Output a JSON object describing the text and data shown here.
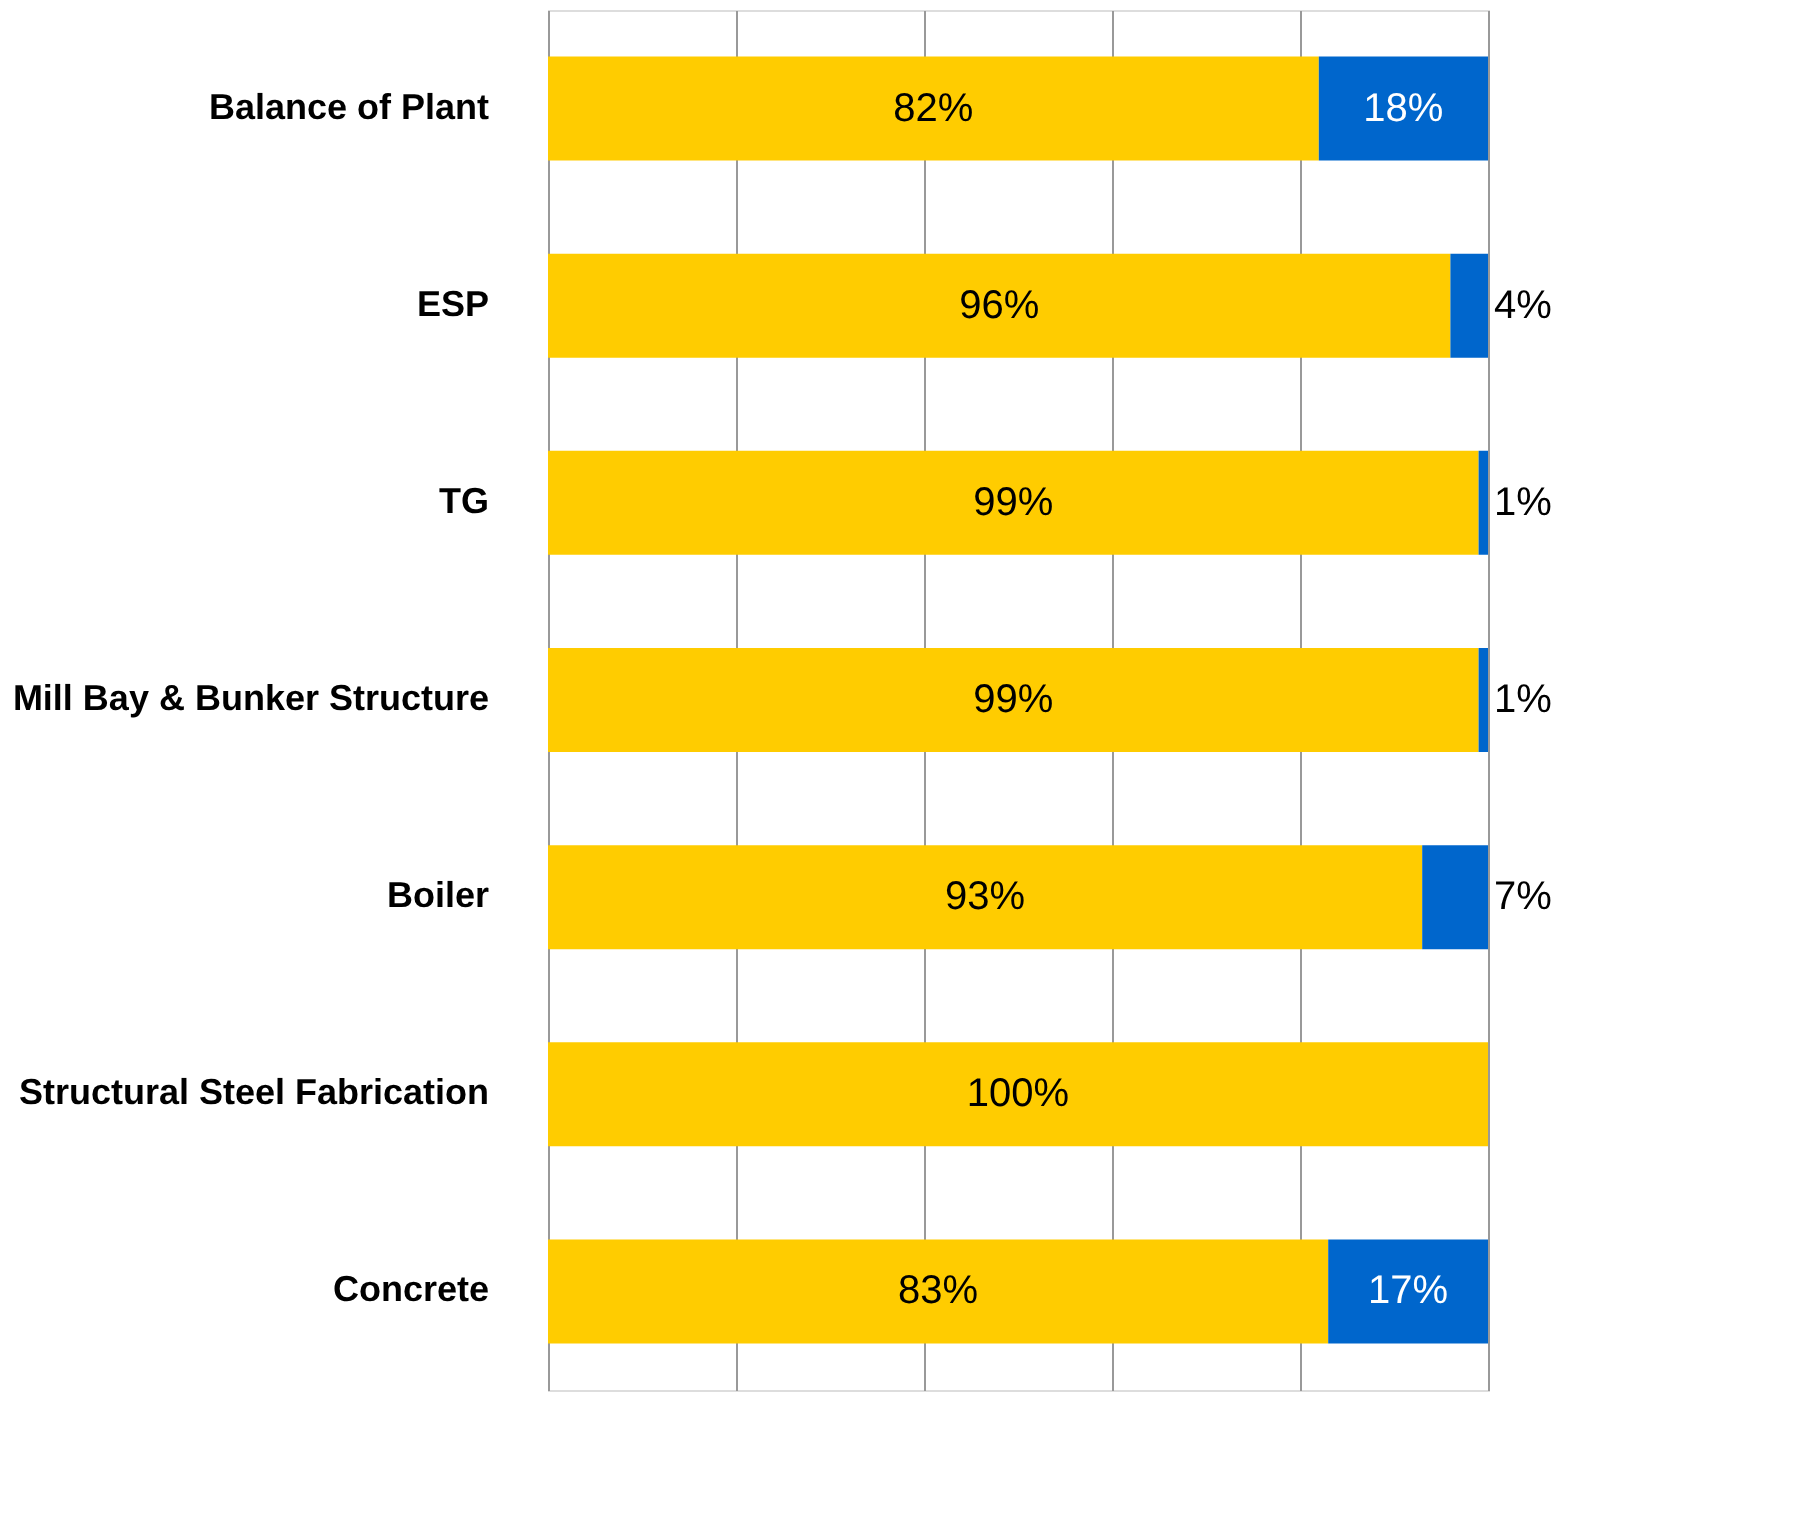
{
  "chart_data": {
    "type": "bar",
    "orientation": "horizontal",
    "stacked": true,
    "categories": [
      "Balance of Plant",
      "ESP",
      "TG",
      "Mill Bay & Bunker Structure",
      "Boiler",
      "Structural Steel Fabrication",
      "Concrete"
    ],
    "series": [
      {
        "color": "#ffcc00",
        "values": [
          82,
          96,
          99,
          99,
          93,
          100,
          83
        ],
        "value_labels": [
          "82%",
          "96%",
          "99%",
          "99%",
          "93%",
          "100%",
          "83%"
        ]
      },
      {
        "color": "#0066cc",
        "values": [
          18,
          4,
          1,
          1,
          7,
          0,
          17
        ],
        "value_labels": [
          "18%",
          "4%",
          "1%",
          "1%",
          "7%",
          null,
          "17%"
        ]
      }
    ],
    "xlim": [
      0,
      100
    ],
    "xticks": [
      {
        "value": 0,
        "label": null
      },
      {
        "value": 20,
        "label": null
      },
      {
        "value": 40,
        "label": null
      },
      {
        "value": 60,
        "label": null
      },
      {
        "value": 80,
        "label": null
      },
      {
        "value": 100,
        "label": null
      }
    ],
    "grid": "x",
    "tick_labels": "y",
    "legend": false
  }
}
